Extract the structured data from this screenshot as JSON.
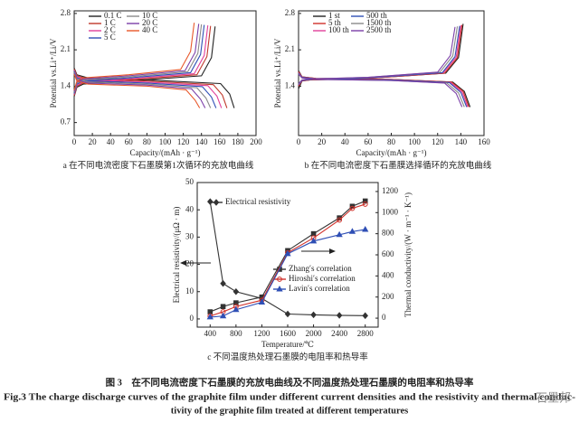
{
  "chart_data": [
    {
      "type": "line",
      "xlabel": "Capacity/(mAh · g⁻¹)",
      "ylabel": "Potential vs.Li⁺/Li/V",
      "caption": "a 在不同电流密度下石墨膜第1次循环的充放电曲线",
      "xlim": [
        0,
        200
      ],
      "xticks": [
        0,
        20,
        40,
        60,
        80,
        100,
        120,
        140,
        160,
        180,
        200
      ],
      "ylim": [
        0.45,
        2.85
      ],
      "yticks": [
        0.7,
        1.4,
        2.1,
        2.8
      ],
      "series": [
        {
          "name": "0.1 C",
          "color": "#222222",
          "x": [
            0,
            3,
            10,
            60,
            140,
            151,
            155,
            null,
            0,
            3,
            15,
            80,
            161,
            171,
            176
          ],
          "values": [
            1.2,
            1.38,
            1.44,
            1.5,
            1.6,
            1.95,
            2.55,
            null,
            1.75,
            1.62,
            1.56,
            1.52,
            1.45,
            1.25,
            0.98
          ]
        },
        {
          "name": "1 C",
          "color": "#c0392b",
          "x": [
            0,
            3,
            10,
            60,
            135,
            146,
            150,
            null,
            0,
            3,
            15,
            80,
            153,
            163,
            168
          ],
          "values": [
            1.22,
            1.4,
            1.46,
            1.52,
            1.62,
            1.97,
            2.56,
            null,
            1.73,
            1.6,
            1.54,
            1.5,
            1.43,
            1.23,
            0.98
          ]
        },
        {
          "name": "2 C",
          "color": "#e0409a",
          "x": [
            0,
            3,
            10,
            60,
            132,
            143,
            147,
            null,
            0,
            3,
            15,
            80,
            147,
            157,
            162
          ],
          "values": [
            1.24,
            1.42,
            1.48,
            1.54,
            1.64,
            1.99,
            2.57,
            null,
            1.71,
            1.58,
            1.52,
            1.48,
            1.41,
            1.21,
            0.98
          ]
        },
        {
          "name": "5 C",
          "color": "#2f4fb5",
          "x": [
            0,
            3,
            10,
            60,
            128,
            139,
            143,
            null,
            0,
            3,
            15,
            80,
            141,
            151,
            156
          ],
          "values": [
            1.26,
            1.44,
            1.5,
            1.56,
            1.66,
            2.01,
            2.58,
            null,
            1.69,
            1.56,
            1.5,
            1.46,
            1.39,
            1.19,
            0.98
          ]
        },
        {
          "name": "10 C",
          "color": "#8a8a8a",
          "x": [
            0,
            3,
            10,
            60,
            125,
            136,
            140,
            null,
            0,
            3,
            15,
            80,
            135,
            145,
            150
          ],
          "values": [
            1.28,
            1.46,
            1.52,
            1.58,
            1.68,
            2.03,
            2.59,
            null,
            1.67,
            1.54,
            1.48,
            1.44,
            1.37,
            1.17,
            0.98
          ]
        },
        {
          "name": "20 C",
          "color": "#7b3fa8",
          "x": [
            0,
            3,
            10,
            60,
            122,
            133,
            137,
            null,
            0,
            3,
            15,
            80,
            129,
            139,
            144
          ],
          "values": [
            1.3,
            1.48,
            1.54,
            1.6,
            1.7,
            2.05,
            2.6,
            null,
            1.65,
            1.52,
            1.46,
            1.42,
            1.35,
            1.15,
            0.98
          ]
        },
        {
          "name": "40 C",
          "color": "#e8572a",
          "x": [
            0,
            3,
            10,
            60,
            117,
            128,
            132,
            null,
            0,
            3,
            15,
            80,
            123,
            133,
            138
          ],
          "values": [
            1.32,
            1.5,
            1.56,
            1.62,
            1.72,
            2.07,
            2.62,
            null,
            1.63,
            1.5,
            1.44,
            1.4,
            1.33,
            1.13,
            0.98
          ]
        }
      ]
    },
    {
      "type": "line",
      "xlabel": "Capacity/(mAh · g⁻¹)",
      "ylabel": "Potential vs.Li⁺/Li/V",
      "caption": "b 在不同电流密度下石墨膜选择循环的充放电曲线",
      "xlim": [
        0,
        160
      ],
      "xticks": [
        0,
        20,
        40,
        60,
        80,
        100,
        120,
        140,
        160
      ],
      "ylim": [
        0.45,
        2.85
      ],
      "yticks": [
        1.4,
        2.1,
        2.8
      ],
      "series": [
        {
          "name": "1 st",
          "color": "#222222",
          "x": [
            0,
            3,
            10,
            60,
            127,
            138,
            142,
            null,
            0,
            3,
            15,
            80,
            133,
            143,
            148
          ],
          "values": [
            1.35,
            1.5,
            1.52,
            1.55,
            1.65,
            1.95,
            2.6,
            null,
            1.7,
            1.58,
            1.55,
            1.53,
            1.48,
            1.3,
            1.0
          ]
        },
        {
          "name": "5 th",
          "color": "#d0302a",
          "x": [
            0,
            3,
            10,
            60,
            126,
            137,
            141,
            null,
            0,
            3,
            15,
            80,
            132,
            142,
            147
          ],
          "values": [
            1.4,
            1.5,
            1.52,
            1.55,
            1.65,
            1.95,
            2.58,
            null,
            1.68,
            1.58,
            1.55,
            1.53,
            1.48,
            1.3,
            1.0
          ]
        },
        {
          "name": "100 th",
          "color": "#e0409a",
          "x": [
            0,
            3,
            10,
            60,
            125,
            136,
            140,
            null,
            0,
            3,
            15,
            80,
            131,
            141,
            146
          ],
          "values": [
            1.42,
            1.51,
            1.53,
            1.56,
            1.66,
            1.96,
            2.57,
            null,
            1.66,
            1.57,
            1.54,
            1.52,
            1.47,
            1.29,
            1.0
          ]
        },
        {
          "name": "500 th",
          "color": "#2f4fb5",
          "x": [
            0,
            3,
            10,
            60,
            124,
            135,
            139,
            null,
            0,
            3,
            15,
            80,
            130,
            140,
            145
          ],
          "values": [
            1.43,
            1.51,
            1.53,
            1.56,
            1.66,
            1.97,
            2.56,
            null,
            1.65,
            1.57,
            1.54,
            1.52,
            1.47,
            1.28,
            1.0
          ]
        },
        {
          "name": "1500 th",
          "color": "#8a8a8a",
          "x": [
            0,
            3,
            10,
            60,
            122,
            133,
            137,
            null,
            0,
            3,
            15,
            80,
            128,
            138,
            143
          ],
          "values": [
            1.44,
            1.52,
            1.54,
            1.57,
            1.67,
            1.98,
            2.55,
            null,
            1.64,
            1.56,
            1.53,
            1.51,
            1.46,
            1.27,
            1.0
          ]
        },
        {
          "name": "2500 th",
          "color": "#7b3fa8",
          "x": [
            0,
            3,
            10,
            60,
            120,
            131,
            135,
            null,
            0,
            3,
            15,
            80,
            126,
            136,
            141
          ],
          "values": [
            1.45,
            1.52,
            1.54,
            1.57,
            1.67,
            1.99,
            2.54,
            null,
            1.63,
            1.56,
            1.53,
            1.51,
            1.46,
            1.26,
            1.0
          ]
        }
      ]
    },
    {
      "type": "line",
      "xlabel": "Temperature/℃",
      "ylabel": "Electrical resistivity/(μΩ · m)",
      "y2label": "Thermal conductivity/(W · m⁻¹ · K⁻¹)",
      "caption": "c 不同温度热处理石墨膜的电阻率和热导率",
      "xlim": [
        200,
        3000
      ],
      "xticks": [
        400,
        800,
        1200,
        1600,
        2000,
        2400,
        2800
      ],
      "ylim": [
        -3,
        50
      ],
      "yticks": [
        0,
        10,
        20,
        30,
        40,
        50
      ],
      "y2lim": [
        -85,
        1285
      ],
      "y2ticks": [
        0,
        200,
        400,
        600,
        800,
        1000,
        1200
      ],
      "series": [
        {
          "name": "Electrical resistivity",
          "color": "#333333",
          "marker": "diamond",
          "x": [
            400,
            600,
            800,
            1200,
            1600,
            2000,
            2400,
            2800
          ],
          "values": [
            43,
            13,
            10,
            7.5,
            1.8,
            1.5,
            1.3,
            1.2
          ]
        },
        {
          "name": "Zhang′s correlation",
          "color": "#333333",
          "marker": "square",
          "axis": "y2",
          "x": [
            400,
            600,
            800,
            1200,
            1600,
            2000,
            2400,
            2600,
            2800
          ],
          "values": [
            60,
            110,
            145,
            200,
            640,
            800,
            950,
            1060,
            1110
          ]
        },
        {
          "name": "Hiroshi′s correlation",
          "color": "#d0302a",
          "marker": "circle",
          "axis": "y2",
          "x": [
            400,
            600,
            800,
            1200,
            1600,
            2000,
            2400,
            2600,
            2800
          ],
          "values": [
            20,
            60,
            110,
            170,
            620,
            760,
            930,
            1040,
            1080
          ]
        },
        {
          "name": "Lavin′s correlation",
          "color": "#2f4fb5",
          "marker": "triangle",
          "axis": "y2",
          "x": [
            400,
            600,
            800,
            1200,
            1600,
            2000,
            2400,
            2600,
            2800
          ],
          "values": [
            10,
            20,
            80,
            150,
            610,
            730,
            790,
            820,
            840
          ]
        }
      ]
    }
  ],
  "figure_caption_cn": "图 3　在不同电流密度下石墨膜的充放电曲线及不同温度热处理石墨膜的电阻率和热导率",
  "figure_caption_en": [
    "Fig.3 The charge discharge curves of the graphite film under different current densities and the resistivity and thermal conduc-",
    "tivity of the graphite film treated at different temperatures"
  ],
  "watermark": "石墨邦"
}
